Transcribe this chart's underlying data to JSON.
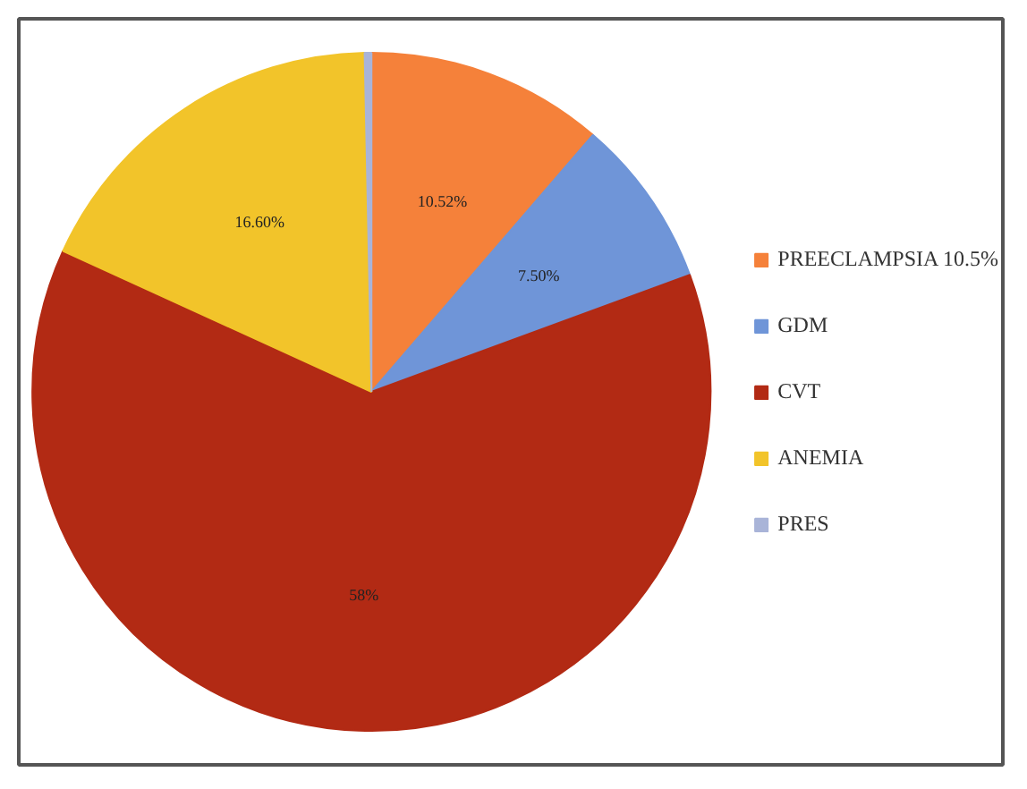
{
  "chart_data": {
    "type": "pie",
    "categories": [
      "PREECLAMPSIA 10.5%",
      "GDM",
      "CVT",
      "ANEMIA",
      "PRES"
    ],
    "values": [
      10.52,
      7.5,
      58,
      16.6,
      0.3
    ],
    "colors": [
      "#f5813a",
      "#6f95d8",
      "#b22a14",
      "#f2c42a",
      "#a9b4d8"
    ],
    "value_labels": [
      "10.52%",
      "7.50%",
      "58%",
      "16.60%",
      null
    ],
    "legend": "right"
  }
}
